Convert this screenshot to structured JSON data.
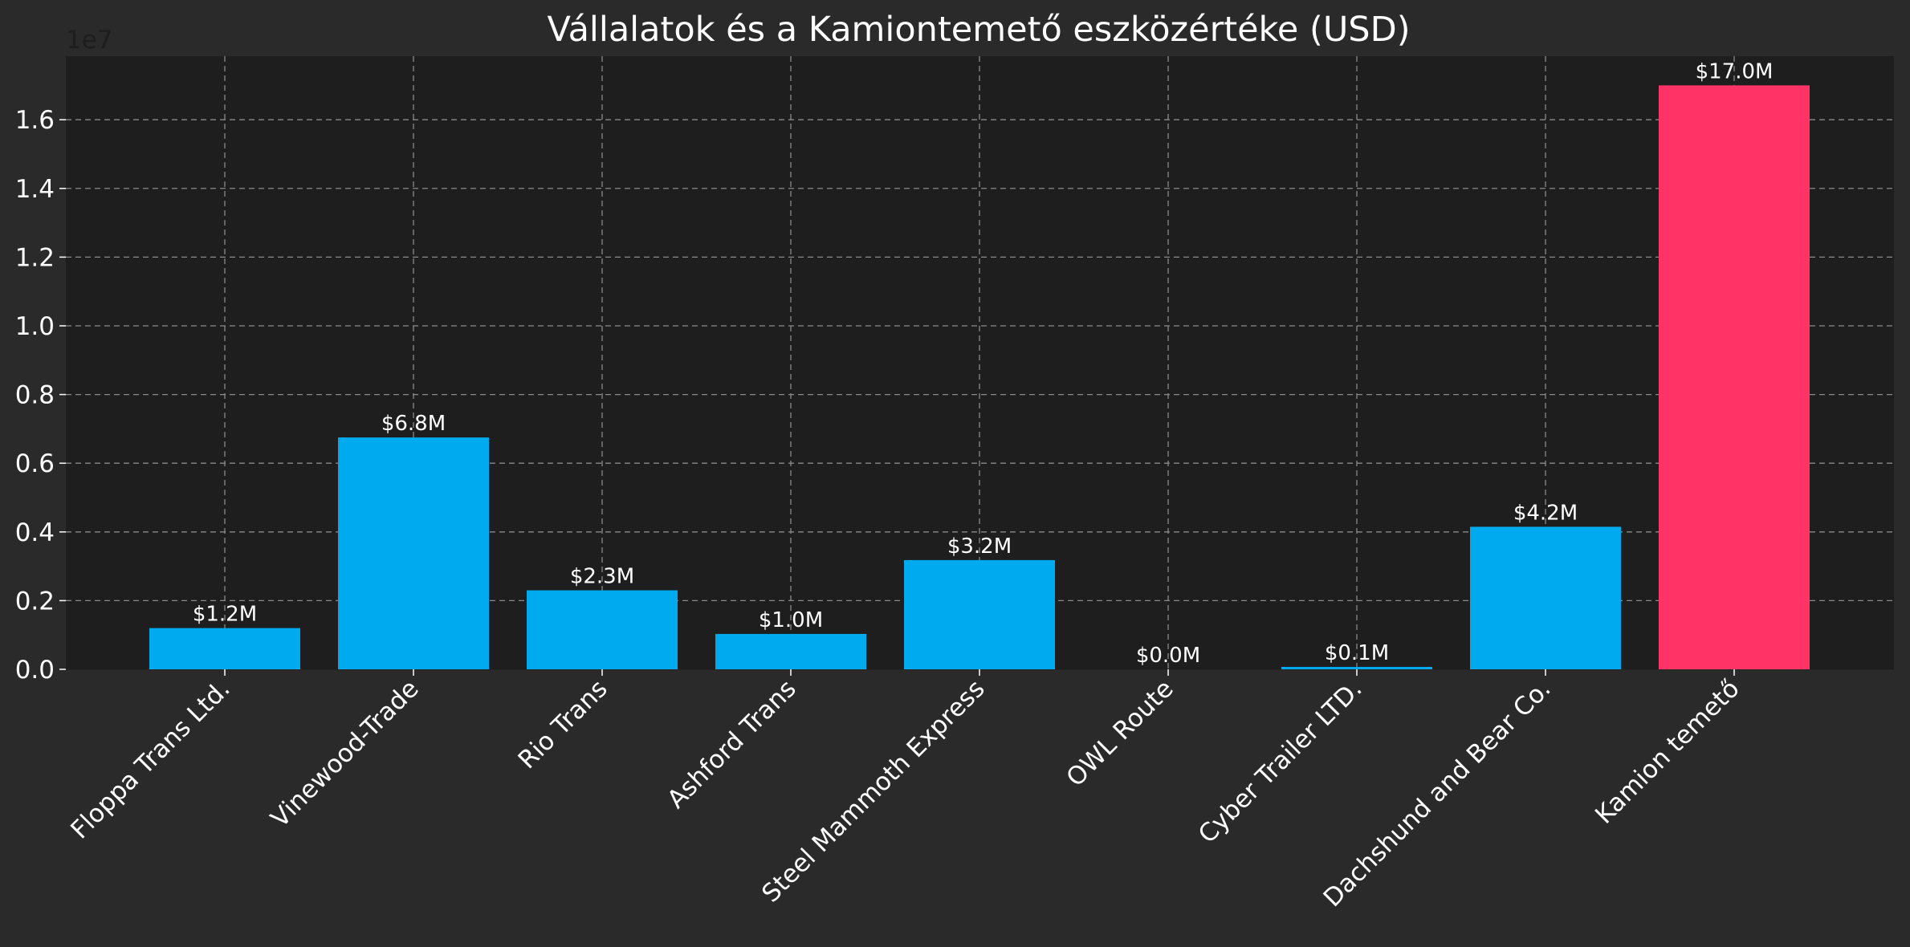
{
  "chart_data": {
    "type": "bar",
    "title": "Vállalatok és a Kamiontemető eszközértéke (USD)",
    "xlabel": "",
    "ylabel": "",
    "y_offset_label": "1e7",
    "ylim": [
      0,
      17850000
    ],
    "yticks": [
      0,
      2000000,
      4000000,
      6000000,
      8000000,
      10000000,
      12000000,
      14000000,
      16000000
    ],
    "ytick_labels": [
      "0.0",
      "0.2",
      "0.4",
      "0.6",
      "0.8",
      "1.0",
      "1.2",
      "1.4",
      "1.6"
    ],
    "grid": true,
    "categories": [
      "Floppa Trans Ltd.",
      "Vinewood-Trade",
      "Rio Trans",
      "Ashford Trans",
      "Steel Mammoth Express",
      "OWL Route",
      "Cyber Trailer LTD.",
      "Dachshund and Bear Co.",
      "Kamion temető"
    ],
    "values": [
      1200000,
      6750000,
      2300000,
      1030000,
      3180000,
      0,
      70000,
      4150000,
      17000000
    ],
    "value_labels": [
      "$1.2M",
      "$6.8M",
      "$2.3M",
      "$1.0M",
      "$3.2M",
      "$0.0M",
      "$0.1M",
      "$4.2M",
      "$17.0M"
    ],
    "bar_colors": [
      "#00aaee",
      "#00aaee",
      "#00aaee",
      "#00aaee",
      "#00aaee",
      "#00aaee",
      "#00aaee",
      "#00aaee",
      "#ff3366"
    ]
  },
  "colors": {
    "background": "#2a2a2a",
    "plot_background": "#1e1e1e"
  }
}
